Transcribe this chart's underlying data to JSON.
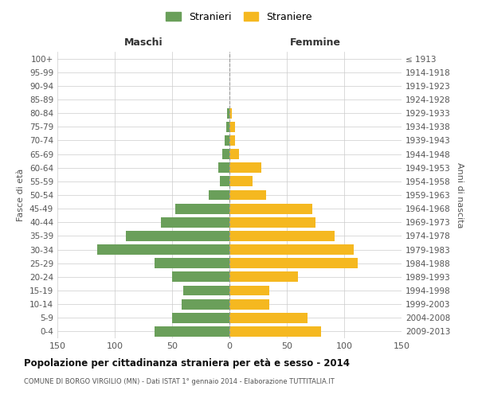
{
  "age_groups": [
    "0-4",
    "5-9",
    "10-14",
    "15-19",
    "20-24",
    "25-29",
    "30-34",
    "35-39",
    "40-44",
    "45-49",
    "50-54",
    "55-59",
    "60-64",
    "65-69",
    "70-74",
    "75-79",
    "80-84",
    "85-89",
    "90-94",
    "95-99",
    "100+"
  ],
  "birth_years": [
    "2009-2013",
    "2004-2008",
    "1999-2003",
    "1994-1998",
    "1989-1993",
    "1984-1988",
    "1979-1983",
    "1974-1978",
    "1969-1973",
    "1964-1968",
    "1959-1963",
    "1954-1958",
    "1949-1953",
    "1944-1948",
    "1939-1943",
    "1934-1938",
    "1929-1933",
    "1924-1928",
    "1919-1923",
    "1914-1918",
    "≤ 1913"
  ],
  "maschi": [
    65,
    50,
    42,
    40,
    50,
    65,
    115,
    90,
    60,
    47,
    18,
    8,
    10,
    6,
    4,
    3,
    2,
    0,
    0,
    0,
    0
  ],
  "femmine": [
    80,
    68,
    35,
    35,
    60,
    112,
    108,
    92,
    75,
    72,
    32,
    20,
    28,
    8,
    5,
    5,
    2,
    0,
    0,
    0,
    0
  ],
  "maschi_color": "#6a9f5a",
  "femmine_color": "#f5b820",
  "background_color": "#ffffff",
  "grid_color": "#cccccc",
  "title": "Popolazione per cittadinanza straniera per età e sesso - 2014",
  "subtitle": "COMUNE DI BORGO VIRGILIO (MN) - Dati ISTAT 1° gennaio 2014 - Elaborazione TUTTITALIA.IT",
  "xlabel_left": "Maschi",
  "xlabel_right": "Femmine",
  "ylabel_left": "Fasce di età",
  "ylabel_right": "Anni di nascita",
  "legend_maschi": "Stranieri",
  "legend_femmine": "Straniere",
  "xlim": 150
}
